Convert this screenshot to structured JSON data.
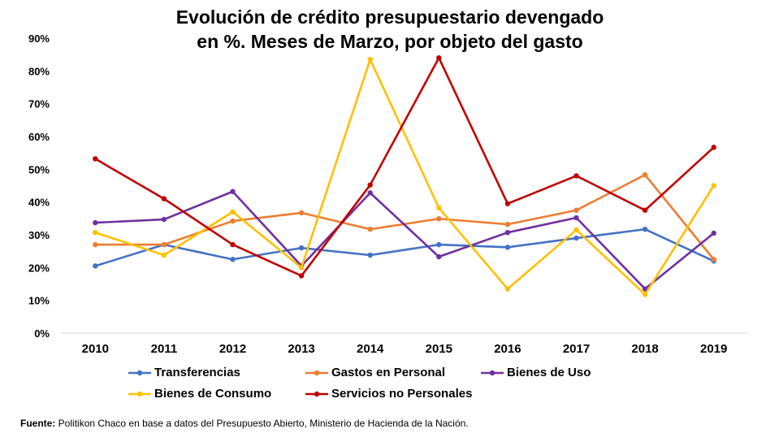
{
  "chart_data": {
    "type": "line",
    "title": "Evolución de crédito presupuestario devengado",
    "subtitle": "en %. Meses de Marzo, por objeto del gasto",
    "xlabel": "",
    "ylabel": "",
    "x": [
      "2010",
      "2011",
      "2012",
      "2013",
      "2014",
      "2015",
      "2016",
      "2017",
      "2018",
      "2019"
    ],
    "ylim": [
      0,
      90
    ],
    "yticks": [
      "0%",
      "10%",
      "20%",
      "30%",
      "40%",
      "50%",
      "60%",
      "70%",
      "80%",
      "90%"
    ],
    "grid": false,
    "legend_position": "bottom",
    "series": [
      {
        "name": "Transferencias",
        "color": "#4472C4",
        "values": [
          20.5,
          27.0,
          22.5,
          26.0,
          23.8,
          27.0,
          26.2,
          29.0,
          31.7,
          22.0
        ]
      },
      {
        "name": "Gastos en Personal",
        "color": "#ED7D31",
        "values": [
          27.0,
          27.0,
          34.2,
          36.7,
          31.7,
          34.9,
          33.2,
          37.5,
          48.3,
          22.5
        ]
      },
      {
        "name": "Bienes de Uso",
        "color": "#7030A0",
        "values": [
          33.7,
          34.7,
          43.2,
          20.5,
          42.8,
          23.3,
          30.7,
          35.2,
          13.5,
          30.5
        ]
      },
      {
        "name": "Bienes de Consumo",
        "color": "#FFC000",
        "values": [
          30.7,
          23.8,
          37.0,
          20.0,
          83.5,
          38.2,
          13.5,
          31.5,
          11.8,
          45.0
        ]
      },
      {
        "name": "Servicios no Personales",
        "color": "#C00000",
        "values": [
          53.2,
          41.0,
          27.0,
          17.5,
          45.2,
          84.0,
          39.5,
          48.0,
          37.5,
          56.7
        ]
      }
    ]
  },
  "source": {
    "label": "Fuente:",
    "text": " Politikon Chaco en base a datos del Presupuesto Abierto, Ministerio de Hacienda de la Nación."
  }
}
